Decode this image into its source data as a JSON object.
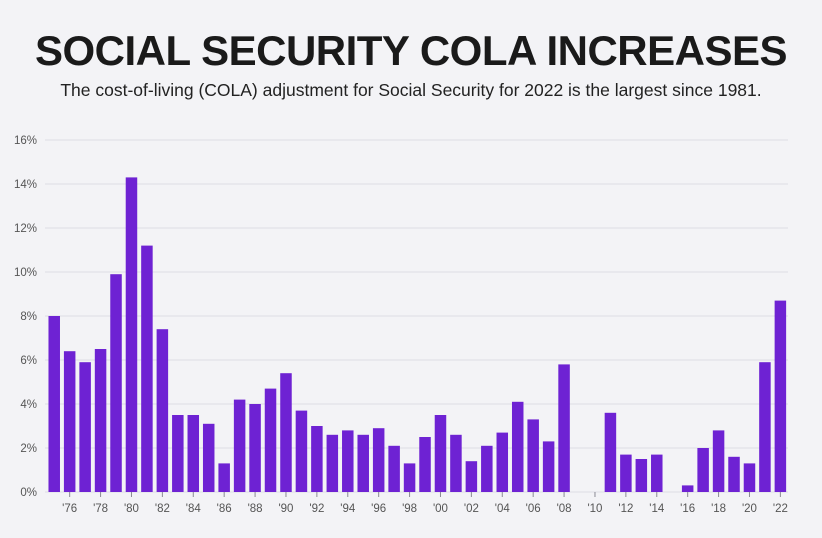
{
  "header": {
    "title": "SOCIAL SECURITY COLA INCREASES",
    "subtitle": "The cost-of-living (COLA) adjustment for Social Security for 2022 is the largest since 1981."
  },
  "colors": {
    "bar": "#6e22d3",
    "grid": "#dcdce4",
    "background": "#f3f3f6"
  },
  "chart_data": {
    "type": "bar",
    "categories": [
      "1975",
      "1976",
      "1977",
      "1978",
      "1979",
      "1980",
      "1981",
      "1982",
      "1983",
      "1984",
      "1985",
      "1986",
      "1987",
      "1988",
      "1989",
      "1990",
      "1991",
      "1992",
      "1993",
      "1994",
      "1995",
      "1996",
      "1997",
      "1998",
      "1999",
      "2000",
      "2001",
      "2002",
      "2003",
      "2004",
      "2005",
      "2006",
      "2007",
      "2008",
      "2009",
      "2010",
      "2011",
      "2012",
      "2013",
      "2014",
      "2015",
      "2016",
      "2017",
      "2018",
      "2019",
      "2020",
      "2021",
      "2022"
    ],
    "values": [
      8.0,
      6.4,
      5.9,
      6.5,
      9.9,
      14.3,
      11.2,
      7.4,
      3.5,
      3.5,
      3.1,
      1.3,
      4.2,
      4.0,
      4.7,
      5.4,
      3.7,
      3.0,
      2.6,
      2.8,
      2.6,
      2.9,
      2.1,
      1.3,
      2.5,
      3.5,
      2.6,
      1.4,
      2.1,
      2.7,
      4.1,
      3.3,
      2.3,
      5.8,
      0,
      0,
      3.6,
      1.7,
      1.5,
      1.7,
      0,
      0.3,
      2.0,
      2.8,
      1.6,
      1.3,
      5.9,
      8.7
    ],
    "x_tick_labels": [
      "'76",
      "'78",
      "'80",
      "'82",
      "'84",
      "'86",
      "'88",
      "'90",
      "'92",
      "'94",
      "'96",
      "'98",
      "'00",
      "'02",
      "'04",
      "'06",
      "'08",
      "'10",
      "'12",
      "'14",
      "'16",
      "'18",
      "'20",
      "'22"
    ],
    "y_tick_labels": [
      "0%",
      "2%",
      "4%",
      "6%",
      "8%",
      "10%",
      "12%",
      "14%",
      "16%"
    ],
    "ylim": [
      0,
      16
    ],
    "y_unit": "%",
    "grid": true,
    "legend": "none"
  }
}
